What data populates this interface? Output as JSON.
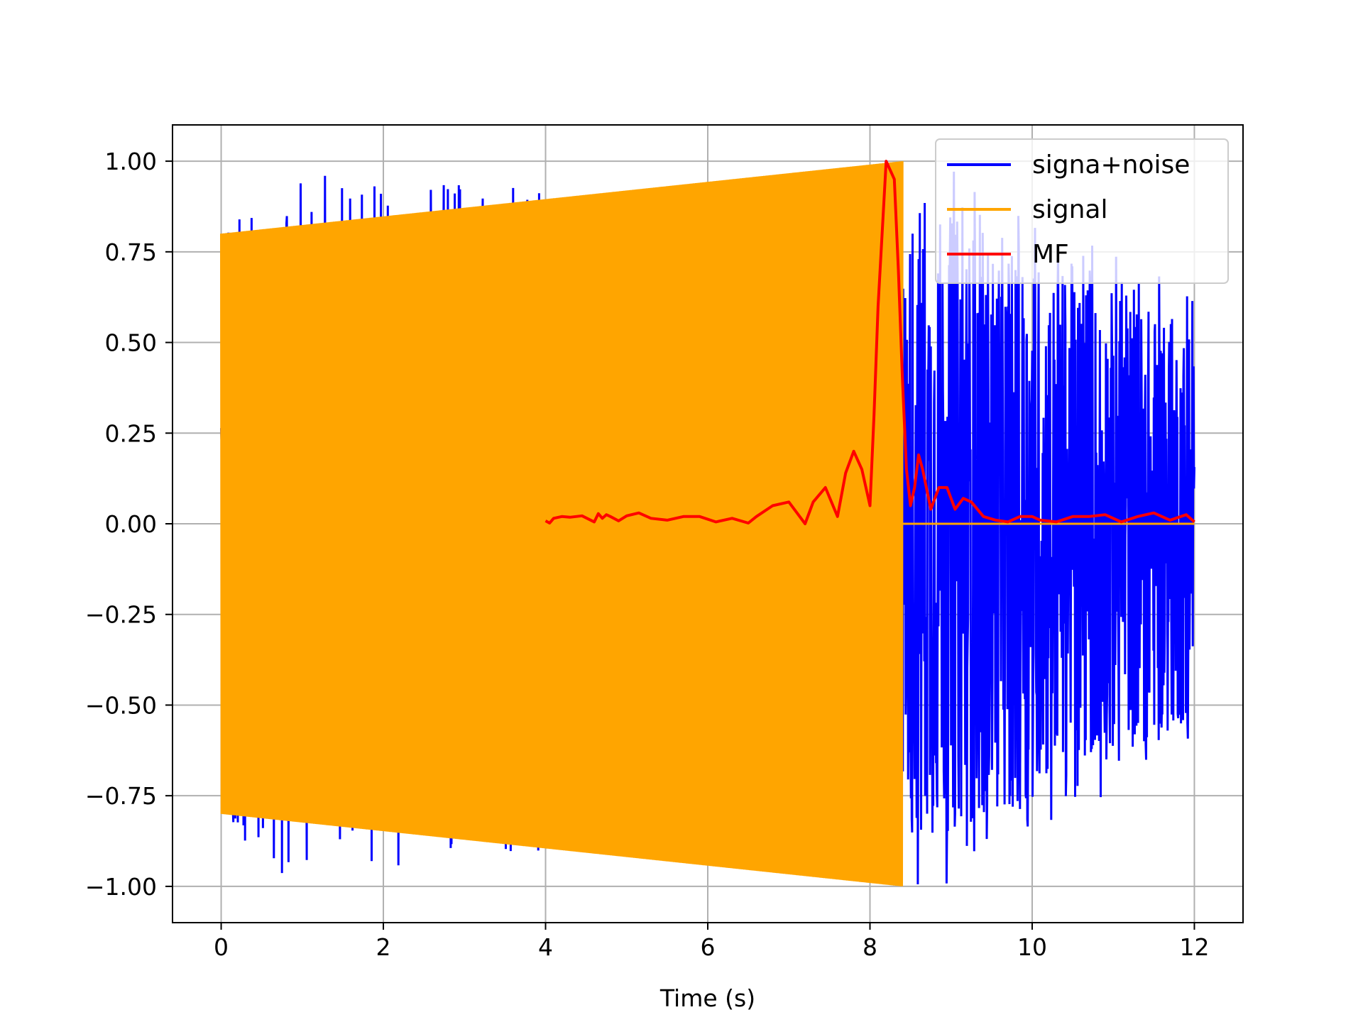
{
  "chart_data": {
    "type": "line",
    "title": "",
    "xlabel": "Time (s)",
    "ylabel": "",
    "xlim": [
      -0.6,
      12.6
    ],
    "ylim": [
      -1.1,
      1.1
    ],
    "xticks": [
      0,
      2,
      4,
      6,
      8,
      10,
      12
    ],
    "xtick_labels": [
      "0",
      "2",
      "4",
      "6",
      "8",
      "10",
      "12"
    ],
    "yticks": [
      1.0,
      0.75,
      0.5,
      0.25,
      0.0,
      -0.25,
      -0.5,
      -0.75,
      -1.0
    ],
    "ytick_labels": [
      "1.00",
      "0.75",
      "0.50",
      "0.25",
      "0.00",
      "−0.25",
      "−0.50",
      "−0.75",
      "−1.00"
    ],
    "grid": true,
    "legend_position": "top-right",
    "series": [
      {
        "name": "signa+noise",
        "color": "#0000ff",
        "description_of_extent": "noisy oscillation from 0 to 12 s",
        "envelope": [
          [
            0,
            0.85
          ],
          [
            8.4,
            0.75
          ],
          [
            8.6,
            0.9
          ],
          [
            10,
            0.75
          ],
          [
            12,
            0.55
          ]
        ]
      },
      {
        "name": "signal",
        "color": "#ffa500",
        "envelope": [
          [
            0,
            0.8
          ],
          [
            8.4,
            1.0
          ]
        ],
        "after": [
          [
            8.4,
            0.0
          ],
          [
            12,
            0.0
          ]
        ]
      },
      {
        "name": "MF",
        "color": "#ff0000",
        "x": [
          4.0,
          4.05,
          4.1,
          4.2,
          4.3,
          4.45,
          4.6,
          4.65,
          4.7,
          4.75,
          4.8,
          4.9,
          5.0,
          5.15,
          5.3,
          5.5,
          5.7,
          5.9,
          6.1,
          6.3,
          6.5,
          6.6,
          6.8,
          7.0,
          7.1,
          7.2,
          7.3,
          7.45,
          7.6,
          7.7,
          7.8,
          7.9,
          8.0,
          8.05,
          8.1,
          8.2,
          8.3,
          8.35,
          8.4,
          8.45,
          8.5,
          8.55,
          8.6,
          8.65,
          8.75,
          8.85,
          8.95,
          9.05,
          9.15,
          9.25,
          9.4,
          9.55,
          9.7,
          9.85,
          10.0,
          10.1,
          10.3,
          10.5,
          10.7,
          10.9,
          11.1,
          11.3,
          11.5,
          11.7,
          11.9,
          12.0
        ],
        "y": [
          0.008,
          0.002,
          0.015,
          0.02,
          0.018,
          0.022,
          0.005,
          0.028,
          0.015,
          0.025,
          0.02,
          0.008,
          0.022,
          0.03,
          0.015,
          0.01,
          0.02,
          0.02,
          0.005,
          0.015,
          0.002,
          0.02,
          0.05,
          0.06,
          0.03,
          0.0,
          0.06,
          0.1,
          0.02,
          0.14,
          0.2,
          0.15,
          0.05,
          0.3,
          0.6,
          1.0,
          0.95,
          0.7,
          0.4,
          0.15,
          0.05,
          0.1,
          0.19,
          0.15,
          0.04,
          0.1,
          0.1,
          0.04,
          0.07,
          0.06,
          0.02,
          0.01,
          0.005,
          0.02,
          0.02,
          0.01,
          0.005,
          0.02,
          0.02,
          0.025,
          0.005,
          0.02,
          0.03,
          0.01,
          0.025,
          0.005
        ]
      }
    ]
  }
}
